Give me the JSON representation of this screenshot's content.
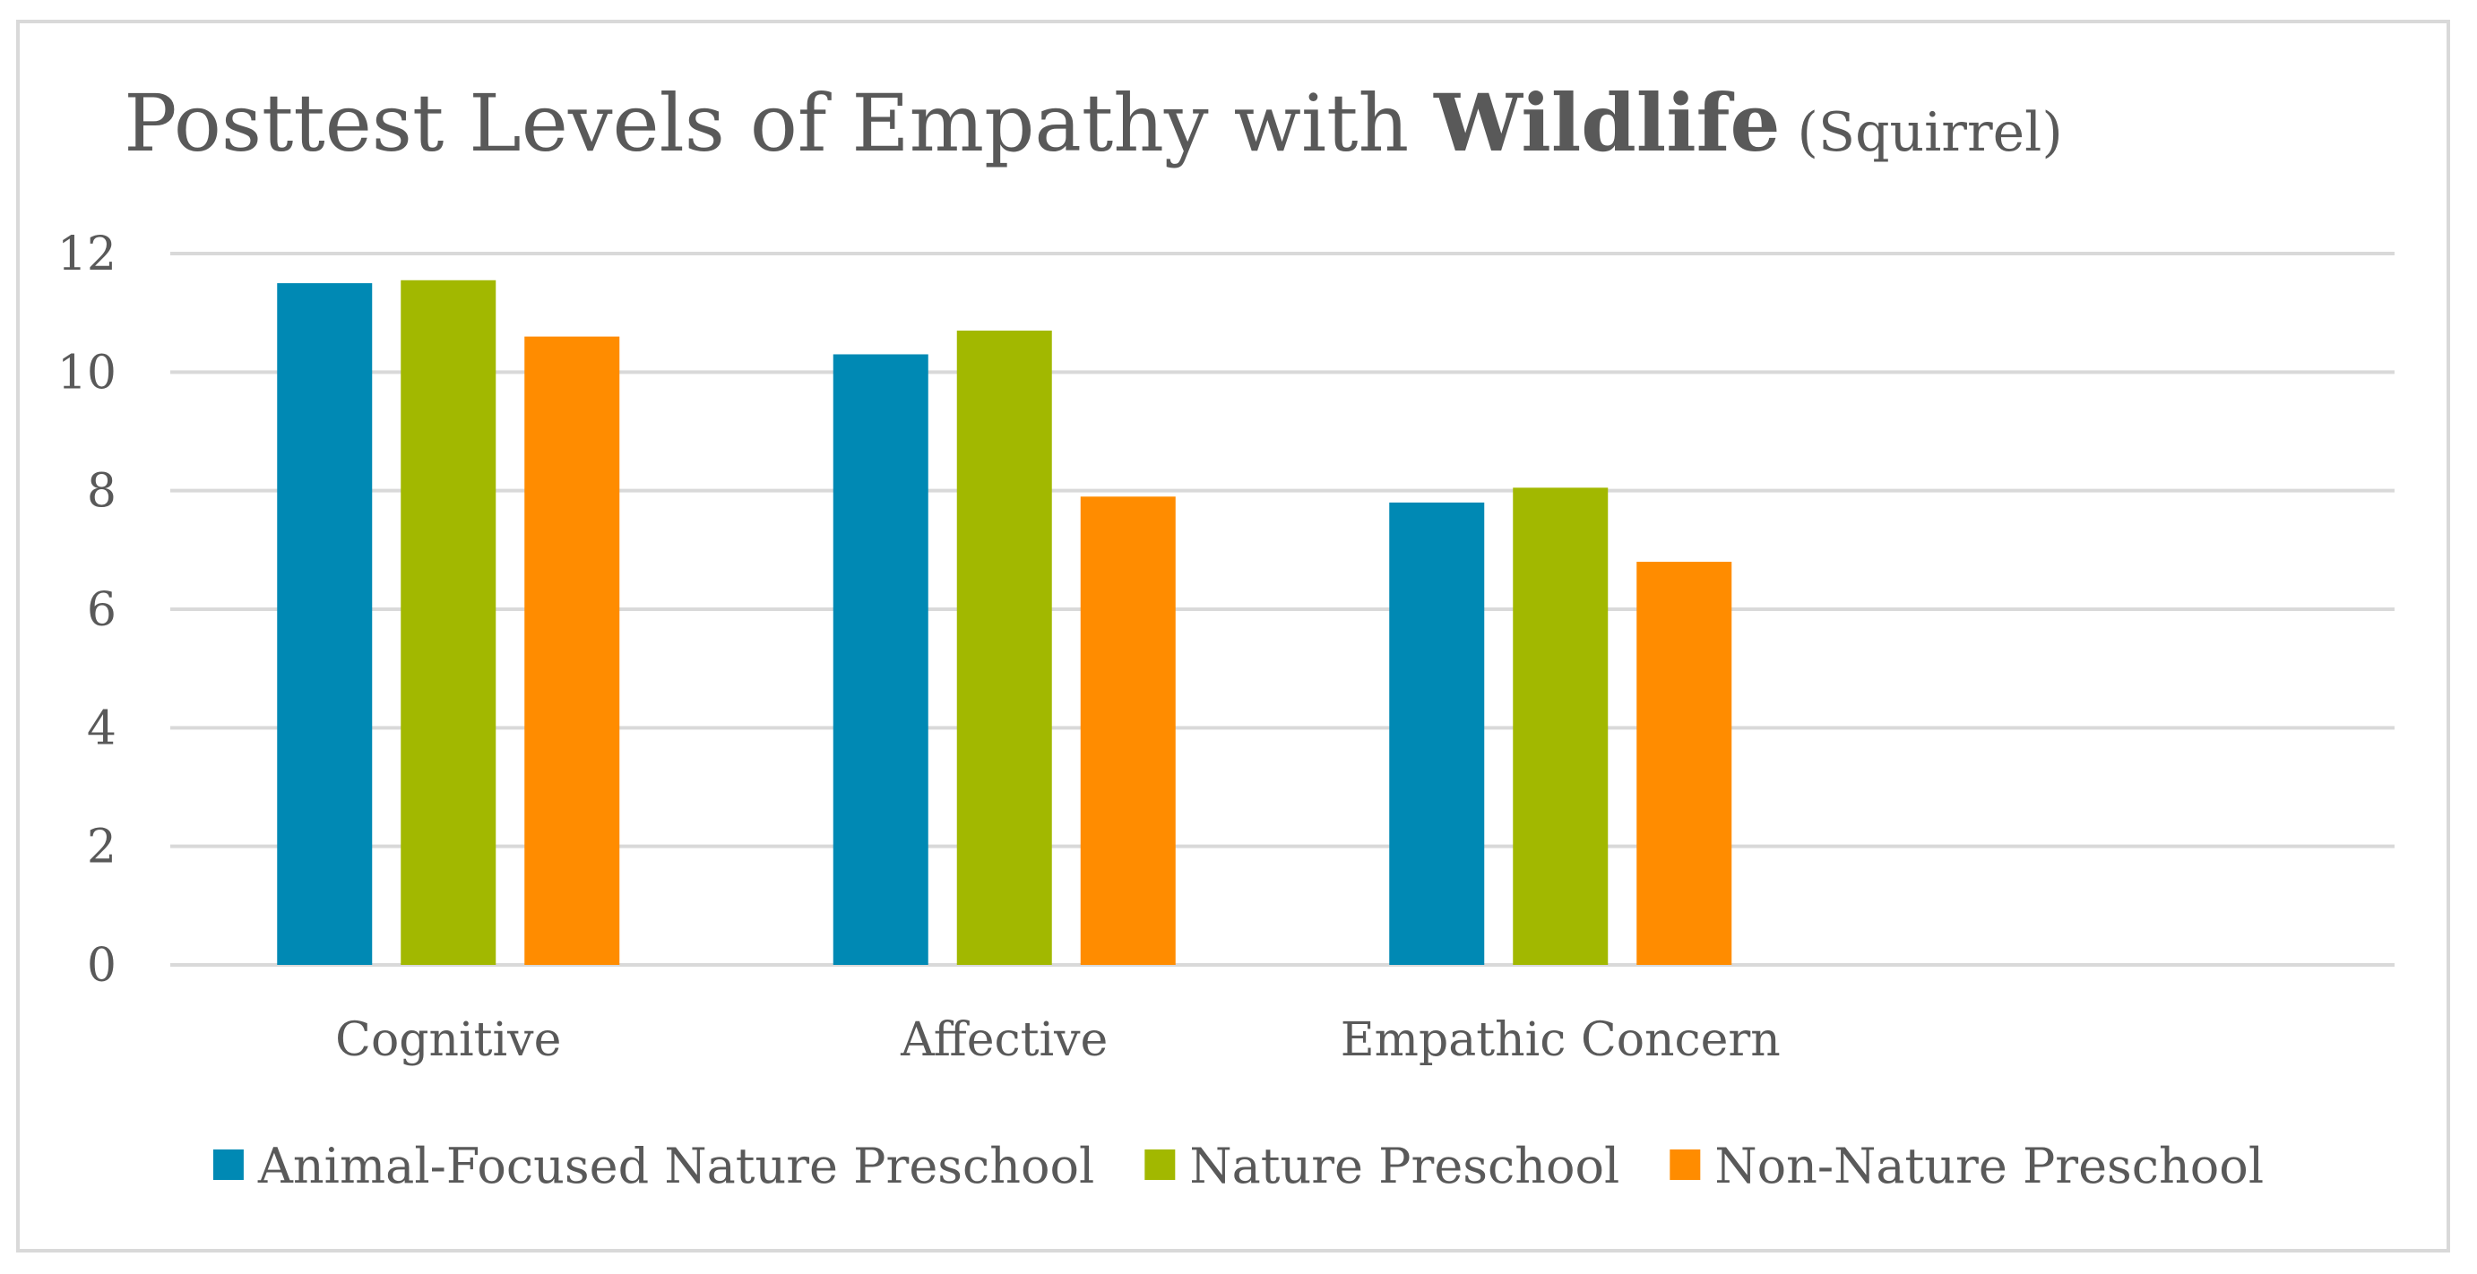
{
  "chart_data": {
    "type": "bar",
    "title_parts": {
      "prefix": "Posttest Levels of Empathy with ",
      "bold": "Wildlife",
      "suffix": " (Squirrel)"
    },
    "xlabel": "",
    "ylabel": "",
    "ylim": [
      0,
      12
    ],
    "yticks": [
      0,
      2,
      4,
      6,
      8,
      10,
      12
    ],
    "grid": true,
    "legend_position": "bottom",
    "categories": [
      "Cognitive",
      "Affective",
      "Empathic Concern"
    ],
    "series": [
      {
        "name": "Animal-Focused Nature Preschool",
        "color": "#0089b4",
        "values": [
          11.5,
          10.3,
          7.8
        ]
      },
      {
        "name": "Nature Preschool",
        "color": "#a2b800",
        "values": [
          11.55,
          10.7,
          8.05
        ]
      },
      {
        "name": "Non-Nature Preschool",
        "color": "#ff8c00",
        "values": [
          10.6,
          7.9,
          6.8
        ]
      }
    ]
  }
}
